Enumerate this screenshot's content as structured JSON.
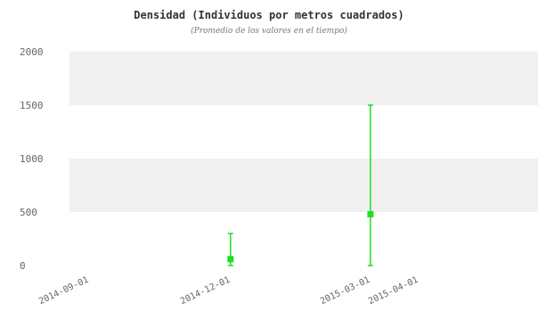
{
  "chart_data": {
    "type": "errorbar",
    "title": "Densidad (Individuos por metros cuadrados)",
    "subtitle": "(Promedio de los valores en el tiempo)",
    "xlabel": "",
    "ylabel": "",
    "ylim": [
      0,
      2000
    ],
    "y_ticks": [
      0,
      500,
      1000,
      1500,
      2000
    ],
    "x_ticks": [
      "2014-09-01",
      "2014-12-01",
      "2015-03-01",
      "2015-04-01"
    ],
    "grid": "alternating horizontal bands",
    "series": [
      {
        "color": "#22dd22",
        "points": [
          {
            "x": "2014-12-01",
            "y": 60,
            "low": 0,
            "high": 300
          },
          {
            "x": "2015-03-01",
            "y": 480,
            "low": 0,
            "high": 1500
          }
        ]
      }
    ],
    "colors": {
      "band": "#f0f0f0",
      "series": "#22dd22",
      "axis_text": "#666666"
    }
  }
}
